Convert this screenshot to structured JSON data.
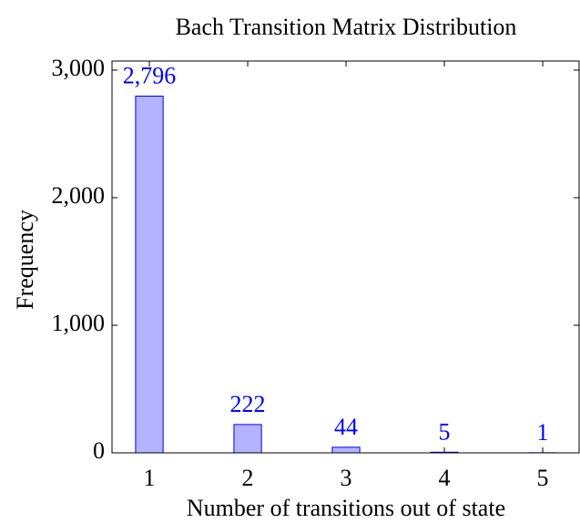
{
  "chart_data": {
    "type": "bar",
    "title": "Bach Transition Matrix Distribution",
    "xlabel": "Number of transitions out of state",
    "ylabel": "Frequency",
    "x": [
      1,
      2,
      3,
      4,
      5
    ],
    "values": [
      2796,
      222,
      44,
      5,
      1
    ],
    "value_labels": [
      "2,796",
      "222",
      "44",
      "5",
      "1"
    ],
    "color": "#b3b3ff",
    "edge_color": "#0000ff",
    "label_color": "#0000ff",
    "xlim": [
      0.62,
      5.37
    ],
    "xticks": [
      1,
      2,
      3,
      4,
      5
    ],
    "ylim": [
      0,
      3071
    ],
    "yticks": [
      0,
      {
        "value": 1000,
        "label": "1,000"
      },
      {
        "value": 2000,
        "label": "2,000"
      },
      {
        "value": 3000,
        "label": "3,000"
      }
    ],
    "grid": false
  }
}
